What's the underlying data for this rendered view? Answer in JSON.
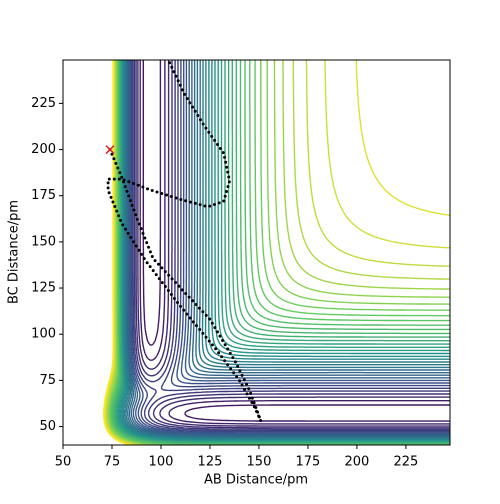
{
  "chart_data": {
    "type": "contour-trajectory",
    "xlabel": "AB Distance/pm",
    "ylabel": "BC Distance/pm",
    "xlim": [
      50,
      247.5
    ],
    "ylim": [
      40,
      248.5
    ],
    "xticks": [
      50,
      75,
      100,
      125,
      150,
      175,
      200,
      225
    ],
    "yticks": [
      50,
      75,
      100,
      125,
      150,
      175,
      200,
      225
    ],
    "contour_colors": [
      "#440154",
      "#3b528b",
      "#21918c",
      "#5ec962",
      "#fde725"
    ],
    "trajectory": {
      "color": "#000000",
      "x": [
        74,
        80,
        88,
        96,
        110,
        125,
        138,
        145,
        151,
        148,
        140,
        128,
        110,
        92,
        80,
        73,
        73,
        80,
        95,
        110,
        124,
        132,
        135,
        132,
        122,
        112,
        104
      ],
      "y": [
        200,
        185,
        162,
        141,
        125,
        108,
        85,
        70,
        53,
        60,
        75,
        92,
        115,
        140,
        160,
        178,
        184,
        184,
        178,
        173,
        169,
        172,
        183,
        198,
        213,
        230,
        248
      ]
    },
    "start": {
      "x": 74,
      "y": 200,
      "color": "#d62728"
    }
  }
}
